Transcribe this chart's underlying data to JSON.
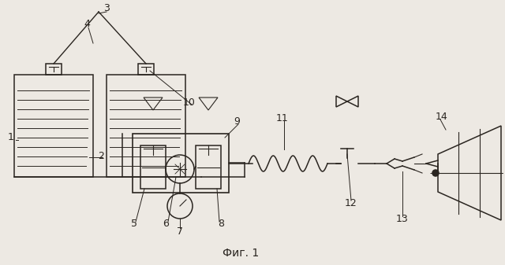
{
  "bg_color": "#ede9e3",
  "line_color": "#2a2520",
  "fig_caption": "Фиг. 1",
  "label_fontsize": 9,
  "caption_fontsize": 10
}
